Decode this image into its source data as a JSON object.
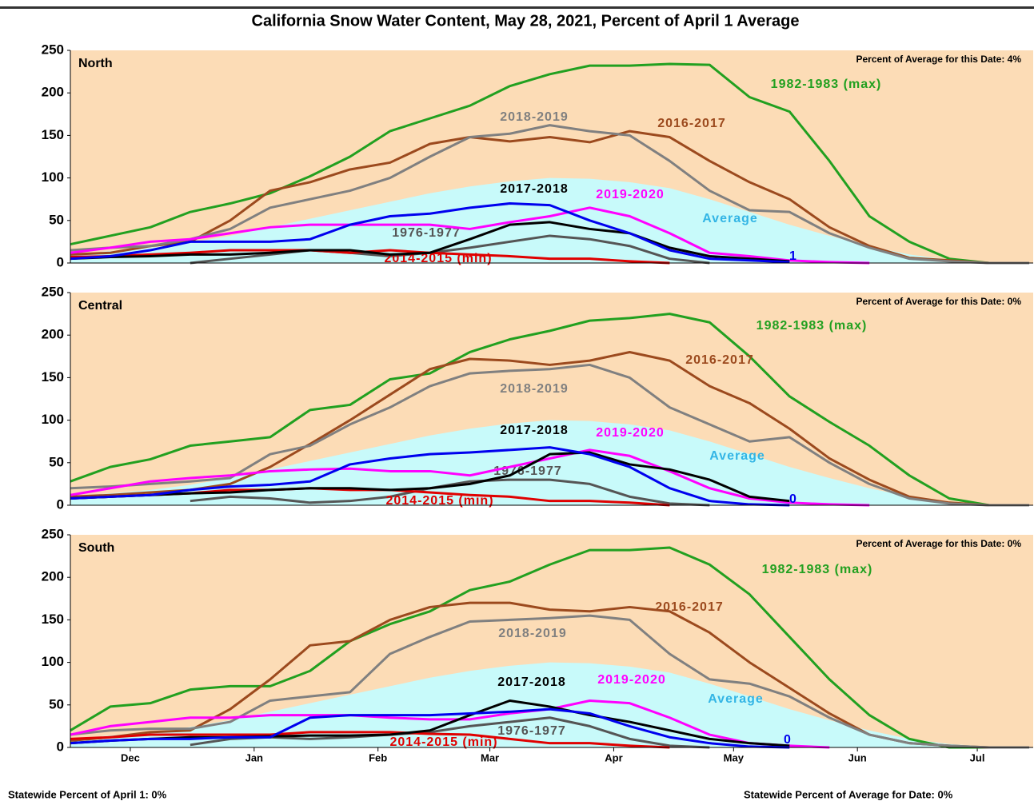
{
  "title": "California Snow Water Content, May 28, 2021, Percent of April 1 Average",
  "footer_left": "Statewide Percent of April 1: 0%",
  "footer_right": "Statewide Percent of Average for Date: 0%",
  "chart_data": [
    {
      "type": "line",
      "region": "North",
      "date_note": "Percent of Average for this Date: 4%",
      "x": [
        46,
        56,
        66,
        76,
        86,
        96,
        106,
        116,
        126,
        136,
        146,
        156,
        166,
        176,
        186,
        196,
        206,
        216,
        226,
        236,
        246,
        256,
        266,
        276,
        286
      ],
      "xlim": [
        46,
        287
      ],
      "ylim": [
        0,
        250
      ],
      "yticks": [
        0,
        50,
        100,
        150,
        200,
        250
      ],
      "series": [
        {
          "name": "Average",
          "color": "#c8fafa",
          "label_color": "#33b5e5",
          "area": true,
          "values": [
            10,
            14,
            18,
            24,
            32,
            42,
            52,
            62,
            72,
            82,
            90,
            96,
            100,
            99,
            95,
            88,
            75,
            60,
            45,
            32,
            20,
            10,
            4,
            1,
            0
          ]
        },
        {
          "name": "1982-1983 (max)",
          "color": "#22a020",
          "values": [
            22,
            32,
            42,
            60,
            70,
            82,
            102,
            125,
            155,
            170,
            185,
            208,
            222,
            232,
            232,
            234,
            233,
            195,
            178,
            120,
            55,
            25,
            5,
            0,
            0
          ]
        },
        {
          "name": "2016-2017",
          "color": "#9c4a1e",
          "values": [
            10,
            12,
            20,
            25,
            50,
            85,
            95,
            110,
            118,
            140,
            148,
            143,
            148,
            142,
            155,
            148,
            120,
            95,
            75,
            42,
            20,
            6,
            3,
            0,
            0
          ]
        },
        {
          "name": "2018-2019",
          "color": "#808080",
          "values": [
            15,
            18,
            20,
            28,
            40,
            65,
            75,
            85,
            100,
            125,
            148,
            152,
            162,
            155,
            150,
            120,
            85,
            62,
            60,
            35,
            18,
            5,
            2,
            0,
            0
          ]
        },
        {
          "name": "1976-1977",
          "color": "#555555",
          "values": [
            null,
            null,
            null,
            0,
            5,
            10,
            15,
            12,
            8,
            12,
            18,
            25,
            32,
            28,
            20,
            5,
            0,
            null,
            null,
            null,
            null,
            null,
            null,
            null,
            null
          ]
        },
        {
          "name": "2014-2015 (min)",
          "color": "#e00000",
          "values": [
            7,
            8,
            10,
            12,
            15,
            15,
            15,
            12,
            15,
            12,
            10,
            8,
            5,
            5,
            2,
            0,
            null,
            null,
            null,
            null,
            null,
            null,
            null,
            null,
            null
          ]
        },
        {
          "name": "2019-2020",
          "color": "#ff00ff",
          "values": [
            12,
            18,
            25,
            28,
            35,
            42,
            45,
            45,
            45,
            45,
            40,
            48,
            55,
            65,
            55,
            35,
            12,
            8,
            3,
            1,
            0,
            null,
            null,
            null,
            null
          ]
        },
        {
          "name": "2017-2018",
          "color": "#000000",
          "values": [
            5,
            7,
            8,
            10,
            10,
            12,
            15,
            15,
            10,
            12,
            28,
            45,
            48,
            40,
            35,
            18,
            8,
            5,
            2,
            null,
            null,
            null,
            null,
            null,
            null
          ]
        },
        {
          "end_label": "1",
          "color": "#0000ee",
          "values": [
            5,
            8,
            15,
            25,
            25,
            25,
            28,
            45,
            55,
            58,
            65,
            70,
            68,
            50,
            35,
            15,
            5,
            3,
            1,
            null,
            null,
            null,
            null,
            null,
            null
          ]
        }
      ]
    },
    {
      "type": "line",
      "region": "Central",
      "date_note": "Percent of Average for this Date: 0%",
      "x": [
        46,
        56,
        66,
        76,
        86,
        96,
        106,
        116,
        126,
        136,
        146,
        156,
        166,
        176,
        186,
        196,
        206,
        216,
        226,
        236,
        246,
        256,
        266,
        276,
        286
      ],
      "xlim": [
        46,
        287
      ],
      "ylim": [
        0,
        250
      ],
      "yticks": [
        0,
        50,
        100,
        150,
        200,
        250
      ],
      "series": [
        {
          "name": "Average",
          "color": "#c8fafa",
          "label_color": "#33b5e5",
          "area": true,
          "values": [
            10,
            14,
            18,
            24,
            32,
            42,
            52,
            62,
            72,
            82,
            90,
            96,
            100,
            99,
            95,
            88,
            75,
            60,
            45,
            32,
            20,
            10,
            4,
            1,
            0
          ]
        },
        {
          "name": "1982-1983 (max)",
          "color": "#22a020",
          "values": [
            28,
            45,
            54,
            70,
            75,
            80,
            112,
            118,
            148,
            155,
            180,
            195,
            205,
            217,
            220,
            225,
            215,
            175,
            128,
            98,
            70,
            35,
            8,
            0,
            0
          ]
        },
        {
          "name": "2016-2017",
          "color": "#9c4a1e",
          "values": [
            10,
            12,
            15,
            18,
            25,
            45,
            72,
            100,
            130,
            160,
            172,
            170,
            165,
            170,
            180,
            170,
            140,
            120,
            90,
            55,
            30,
            10,
            3,
            0,
            0
          ]
        },
        {
          "name": "2018-2019",
          "color": "#808080",
          "values": [
            20,
            22,
            25,
            28,
            32,
            60,
            70,
            95,
            115,
            140,
            155,
            158,
            160,
            165,
            150,
            115,
            95,
            75,
            80,
            50,
            25,
            8,
            2,
            0,
            0
          ]
        },
        {
          "name": "1976-1977",
          "color": "#555555",
          "values": [
            null,
            null,
            null,
            5,
            10,
            8,
            3,
            5,
            10,
            20,
            28,
            30,
            30,
            25,
            10,
            2,
            0,
            null,
            null,
            null,
            null,
            null,
            null,
            null,
            null
          ]
        },
        {
          "name": "2014-2015 (min)",
          "color": "#e00000",
          "values": [
            8,
            10,
            12,
            14,
            18,
            18,
            20,
            18,
            18,
            15,
            12,
            10,
            5,
            5,
            3,
            0,
            null,
            null,
            null,
            null,
            null,
            null,
            null,
            null,
            null
          ]
        },
        {
          "name": "2019-2020",
          "color": "#ff00ff",
          "values": [
            12,
            20,
            28,
            32,
            35,
            40,
            42,
            43,
            40,
            40,
            35,
            45,
            55,
            65,
            58,
            40,
            20,
            8,
            3,
            1,
            0,
            null,
            null,
            null,
            null
          ]
        },
        {
          "name": "2017-2018",
          "color": "#000000",
          "values": [
            8,
            10,
            12,
            14,
            15,
            18,
            20,
            20,
            18,
            20,
            25,
            35,
            60,
            62,
            48,
            42,
            30,
            10,
            5,
            null,
            null,
            null,
            null,
            null,
            null
          ]
        },
        {
          "end_label": "0",
          "color": "#0000ee",
          "values": [
            8,
            10,
            12,
            18,
            22,
            24,
            28,
            48,
            55,
            60,
            62,
            65,
            68,
            60,
            45,
            20,
            5,
            1,
            0,
            null,
            null,
            null,
            null,
            null,
            null
          ]
        }
      ]
    },
    {
      "type": "line",
      "region": "South",
      "date_note": "Percent of Average for this Date: 0%",
      "x": [
        46,
        56,
        66,
        76,
        86,
        96,
        106,
        116,
        126,
        136,
        146,
        156,
        166,
        176,
        186,
        196,
        206,
        216,
        226,
        236,
        246,
        256,
        266,
        276,
        286
      ],
      "xlim": [
        46,
        287
      ],
      "ylim": [
        0,
        250
      ],
      "yticks": [
        0,
        50,
        100,
        150,
        200,
        250
      ],
      "xticks": [
        {
          "value": 61,
          "label": "Dec"
        },
        {
          "value": 92,
          "label": "Jan"
        },
        {
          "value": 123,
          "label": "Feb"
        },
        {
          "value": 151,
          "label": "Mar"
        },
        {
          "value": 182,
          "label": "Apr"
        },
        {
          "value": 212,
          "label": "May"
        },
        {
          "value": 243,
          "label": "Jun"
        },
        {
          "value": 273,
          "label": "Jul"
        }
      ],
      "series": [
        {
          "name": "Average",
          "color": "#c8fafa",
          "label_color": "#33b5e5",
          "area": true,
          "values": [
            10,
            14,
            18,
            24,
            32,
            42,
            52,
            62,
            72,
            82,
            90,
            96,
            100,
            99,
            95,
            88,
            75,
            60,
            45,
            32,
            20,
            10,
            4,
            1,
            0
          ]
        },
        {
          "name": "1982-1983 (max)",
          "color": "#22a020",
          "values": [
            20,
            48,
            52,
            68,
            72,
            72,
            90,
            125,
            145,
            160,
            185,
            195,
            215,
            232,
            232,
            235,
            215,
            180,
            130,
            80,
            38,
            10,
            0,
            0,
            0
          ]
        },
        {
          "name": "2016-2017",
          "color": "#9c4a1e",
          "values": [
            8,
            12,
            18,
            20,
            45,
            80,
            120,
            125,
            150,
            165,
            170,
            170,
            162,
            160,
            165,
            160,
            135,
            100,
            70,
            40,
            15,
            5,
            2,
            0,
            0
          ]
        },
        {
          "name": "2018-2019",
          "color": "#808080",
          "values": [
            15,
            20,
            22,
            22,
            30,
            55,
            60,
            65,
            110,
            130,
            148,
            150,
            152,
            155,
            150,
            110,
            80,
            75,
            60,
            35,
            15,
            5,
            2,
            0,
            0
          ]
        },
        {
          "name": "1976-1977",
          "color": "#555555",
          "values": [
            null,
            null,
            null,
            3,
            10,
            12,
            10,
            12,
            15,
            18,
            25,
            30,
            35,
            25,
            10,
            2,
            0,
            null,
            null,
            null,
            null,
            null,
            null,
            null,
            null
          ]
        },
        {
          "name": "2014-2015 (min)",
          "color": "#e00000",
          "values": [
            10,
            12,
            15,
            15,
            15,
            15,
            18,
            18,
            18,
            16,
            15,
            10,
            5,
            5,
            2,
            0,
            null,
            null,
            null,
            null,
            null,
            null,
            null,
            null,
            null
          ]
        },
        {
          "name": "2019-2020",
          "color": "#ff00ff",
          "values": [
            15,
            25,
            30,
            35,
            35,
            38,
            38,
            38,
            35,
            33,
            33,
            40,
            45,
            55,
            52,
            35,
            15,
            5,
            2,
            0,
            null,
            null,
            null,
            null,
            null
          ]
        },
        {
          "name": "2017-2018",
          "color": "#000000",
          "values": [
            5,
            8,
            10,
            12,
            12,
            13,
            14,
            14,
            15,
            20,
            38,
            55,
            48,
            38,
            30,
            20,
            10,
            5,
            2,
            null,
            null,
            null,
            null,
            null,
            null
          ]
        },
        {
          "end_label": "0",
          "color": "#0000ee",
          "values": [
            5,
            8,
            10,
            10,
            12,
            12,
            35,
            38,
            38,
            38,
            40,
            42,
            45,
            40,
            25,
            12,
            5,
            1,
            0,
            null,
            null,
            null,
            null,
            null,
            null
          ]
        }
      ]
    }
  ]
}
